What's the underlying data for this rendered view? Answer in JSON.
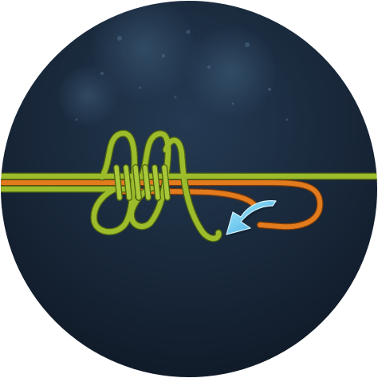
{
  "illustration": {
    "subject": "knot-tying-step",
    "icon": "direction-arrow-icon",
    "colors": {
      "background_light": "#243a52",
      "background_dark": "#101a28",
      "line_green": "#9cbc2c",
      "line_green_shadow": "#4d6210",
      "line_orange": "#e27b1e",
      "line_orange_shadow": "#7a3a08",
      "arrow_light": "#a8ecff",
      "arrow_dark": "#3aa4dc"
    }
  }
}
